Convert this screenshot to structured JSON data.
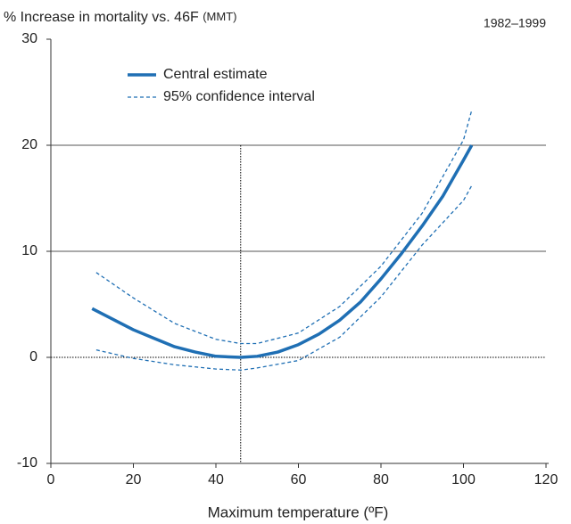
{
  "chart_data": {
    "type": "line",
    "title": "% Increase in mortality vs. 46F",
    "title_note": "(MMT)",
    "subtitle": "1982–1999",
    "x_label": "Maximum temperature (ºF)",
    "reference_x": 46,
    "xlim": [
      0,
      120
    ],
    "xticks": [
      0,
      20,
      40,
      60,
      80,
      100,
      120
    ],
    "ylim": [
      -10,
      30
    ],
    "yticks": [
      -10,
      0,
      10,
      20,
      30
    ],
    "grid": true,
    "series": [
      {
        "name": "Central estimate",
        "color": "#1f6fb4",
        "style": "solid",
        "x": [
          10,
          15,
          20,
          25,
          30,
          35,
          40,
          46,
          50,
          55,
          60,
          65,
          70,
          75,
          80,
          85,
          90,
          95,
          100,
          102
        ],
        "values": [
          4.6,
          3.6,
          2.6,
          1.8,
          1.0,
          0.5,
          0.1,
          0,
          0.1,
          0.5,
          1.2,
          2.2,
          3.5,
          5.2,
          7.4,
          9.8,
          12.4,
          15.2,
          18.6,
          20.0
        ]
      },
      {
        "name": "95% confidence interval",
        "color": "#1f6fb4",
        "style": "dashed",
        "x": [
          11,
          20,
          30,
          40,
          46,
          50,
          60,
          70,
          80,
          90,
          100,
          102
        ],
        "upper": [
          8.0,
          5.6,
          3.2,
          1.7,
          1.3,
          1.3,
          2.3,
          4.8,
          8.6,
          13.6,
          20.5,
          23.3
        ],
        "lower": [
          0.7,
          -0.1,
          -0.7,
          -1.1,
          -1.2,
          -1.0,
          -0.3,
          1.9,
          5.7,
          10.6,
          14.8,
          16.2
        ]
      }
    ]
  }
}
